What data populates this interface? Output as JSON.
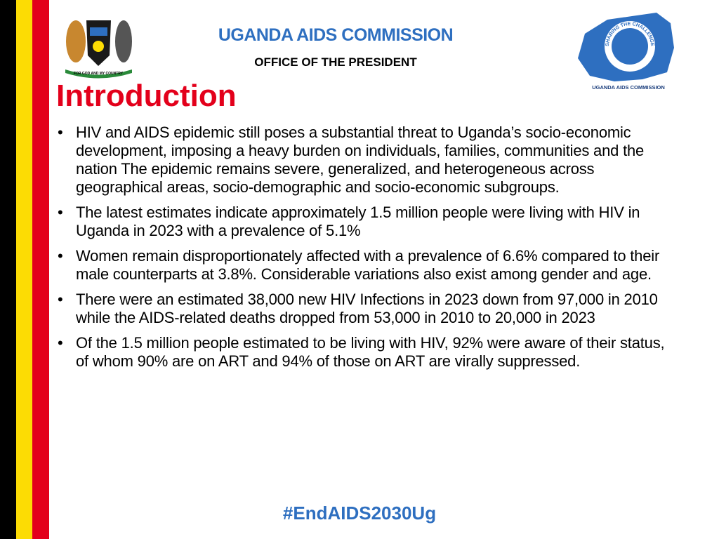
{
  "header": {
    "title": "UGANDA AIDS COMMISSION",
    "subtitle": "OFFICE OF THE PRESIDENT",
    "coat_of_arms_motto": "FOR GOD AND MY COUNTRY",
    "logo_ring": "SHARING THE CHALLENGE",
    "logo_caption": "UGANDA AIDS COMMISSION"
  },
  "heading": "Introduction",
  "bullets": [
    "HIV and AIDS epidemic still poses a substantial threat to Uganda’s socio-economic development, imposing a heavy burden on individuals, families, communities and the nation The epidemic remains severe, generalized, and heterogeneous across geographical areas, socio-demographic and socio-economic subgroups.",
    "The latest estimates indicate approximately 1.5 million people were living with HIV in Uganda in 2023 with a prevalence of 5.1%",
    "Women remain disproportionately affected with a prevalence of 6.6% compared to their male counterparts at 3.8%. Considerable variations also exist among gender and age.",
    "There were an estimated 38,000 new HIV Infections in 2023 down from 97,000 in 2010 while the AIDS-related deaths dropped from 53,000 in 2010 to 20,000 in 2023",
    "Of the 1.5 million people estimated to be living with HIV, 92% were aware of their status, of whom 90% are on ART and 94% of those on ART are virally suppressed."
  ],
  "footer": "#EndAIDS2030Ug"
}
